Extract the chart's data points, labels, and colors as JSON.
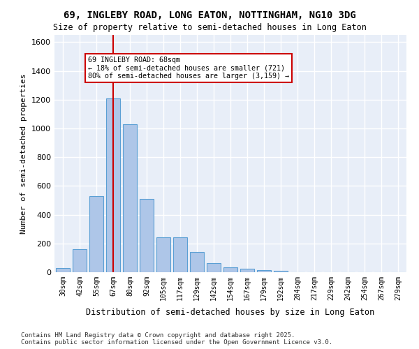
{
  "title_line1": "69, INGLEBY ROAD, LONG EATON, NOTTINGHAM, NG10 3DG",
  "title_line2": "Size of property relative to semi-detached houses in Long Eaton",
  "xlabel": "Distribution of semi-detached houses by size in Long Eaton",
  "ylabel": "Number of semi-detached properties",
  "categories": [
    "30sqm",
    "42sqm",
    "55sqm",
    "67sqm",
    "80sqm",
    "92sqm",
    "105sqm",
    "117sqm",
    "129sqm",
    "142sqm",
    "154sqm",
    "167sqm",
    "179sqm",
    "192sqm",
    "204sqm",
    "217sqm",
    "229sqm",
    "242sqm",
    "254sqm",
    "267sqm",
    "279sqm"
  ],
  "values": [
    30,
    160,
    530,
    1210,
    1030,
    510,
    245,
    245,
    140,
    65,
    35,
    25,
    15,
    8,
    0,
    0,
    0,
    0,
    0,
    0,
    0
  ],
  "bar_color": "#aec6e8",
  "bar_edge_color": "#5a9fd4",
  "background_color": "#e8eef8",
  "grid_color": "#ffffff",
  "vline_x": 3,
  "vline_color": "#cc0000",
  "annotation_text": "69 INGLEBY ROAD: 68sqm\n← 18% of semi-detached houses are smaller (721)\n80% of semi-detached houses are larger (3,159) →",
  "annotation_box_color": "#ffffff",
  "annotation_box_edge": "#cc0000",
  "ylim": [
    0,
    1650
  ],
  "yticks": [
    0,
    200,
    400,
    600,
    800,
    1000,
    1200,
    1400,
    1600
  ],
  "footer_line1": "Contains HM Land Registry data © Crown copyright and database right 2025.",
  "footer_line2": "Contains public sector information licensed under the Open Government Licence v3.0."
}
